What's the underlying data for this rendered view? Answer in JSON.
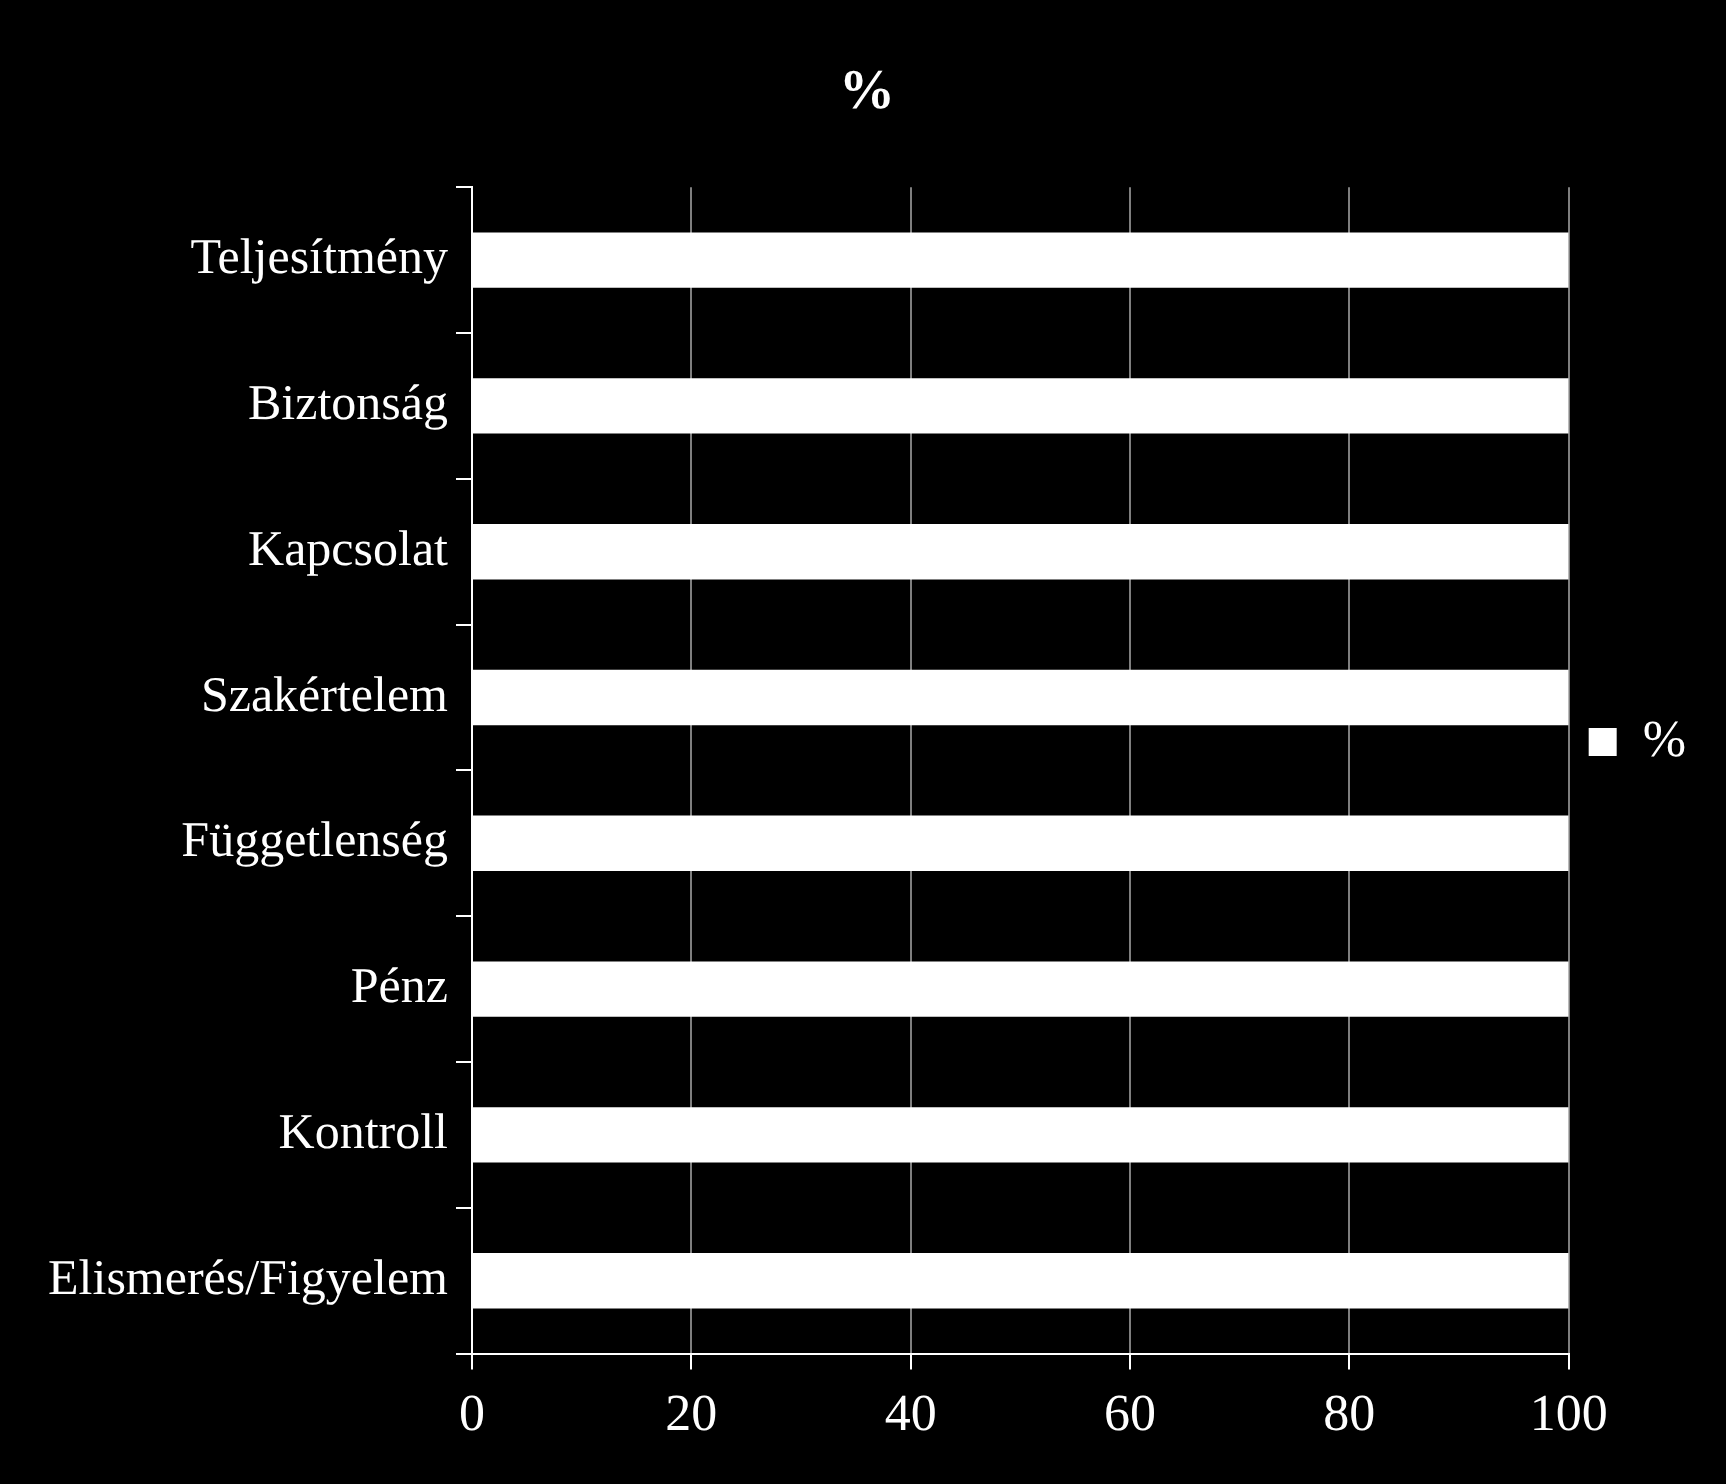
{
  "chart_data": {
    "type": "bar",
    "orientation": "horizontal",
    "title": "%",
    "categories": [
      "Teljesítmény",
      "Biztonság",
      "Kapcsolat",
      "Szakértelem",
      "Függetlenség",
      "Pénz",
      "Kontroll",
      "Elismerés/Figyelem"
    ],
    "series": [
      {
        "name": "%",
        "color": "#ffffff",
        "values": [
          100,
          100,
          100,
          100,
          100,
          100,
          100,
          100
        ]
      }
    ],
    "xlim": [
      0,
      100
    ],
    "xticks": [
      0,
      20,
      40,
      60,
      80,
      100
    ],
    "grid": "x",
    "legend": "right"
  }
}
